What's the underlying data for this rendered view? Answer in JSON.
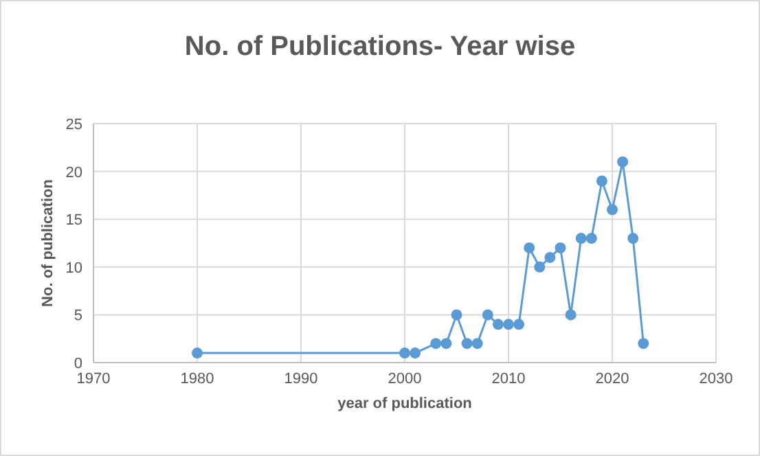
{
  "chart_data": {
    "type": "line",
    "title": "No. of Publications- Year wise",
    "xlabel": "year of publication",
    "ylabel": "No. of publication",
    "x": [
      1980,
      2000,
      2001,
      2003,
      2004,
      2005,
      2006,
      2007,
      2008,
      2009,
      2010,
      2011,
      2012,
      2013,
      2014,
      2015,
      2016,
      2017,
      2018,
      2019,
      2020,
      2021,
      2022,
      2023
    ],
    "series": [
      {
        "color": "#5b9bd5",
        "values": [
          1,
          1,
          1,
          2,
          2,
          5,
          2,
          2,
          5,
          4,
          4,
          4,
          12,
          10,
          11,
          12,
          5,
          13,
          13,
          19,
          16,
          21,
          13,
          2
        ]
      }
    ],
    "xlim": [
      1970,
      2030
    ],
    "xticks": [
      1970,
      1980,
      1990,
      2000,
      2010,
      2020,
      2030
    ],
    "ylim": [
      0,
      25
    ],
    "yticks": [
      0,
      5,
      10,
      15,
      20,
      25
    ],
    "grid": true,
    "marker": "circle",
    "line_style": "solid"
  }
}
